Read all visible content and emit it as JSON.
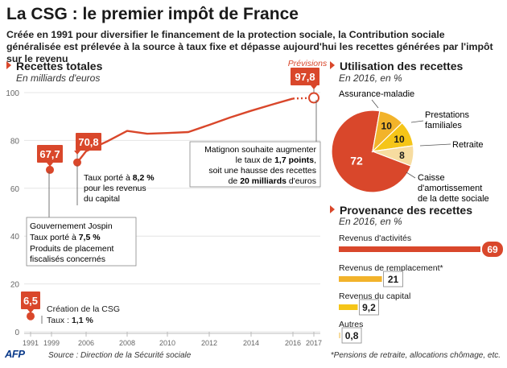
{
  "header": {
    "title": "La CSG : le premier impôt de France",
    "subtitle": "Créée en 1991 pour diversifier le financement de la protection sociale, la Contribution sociale généralisée est prélevée à la source à taux fixe et dépasse aujourd'hui les recettes générées par l'impôt sur le revenu"
  },
  "colors": {
    "accent": "#d9472b",
    "dark_orange": "#e06b1f",
    "gold": "#f2b32b",
    "yellow": "#f5c518",
    "pale": "#f7dca0",
    "grid": "#e4e4e4"
  },
  "line_chart": {
    "heading": "Recettes totales",
    "unit": "En milliards d'euros",
    "forecast_label": "Prévisions",
    "annotations": {
      "a1991": {
        "value": "6,5",
        "line1": "Création de la CSG",
        "line2a": "Taux : ",
        "line2b": "1,1 %"
      },
      "a1997": {
        "value": "67,7",
        "line1": "Gouvernement Jospin",
        "line2a": "Taux porté à ",
        "line2b": "7,5 %",
        "line3": "Produits de placement",
        "line4": "fiscalisés concernés"
      },
      "a2005": {
        "value": "70,8",
        "line1a": "Taux porté à ",
        "line1b": "8,2 %",
        "line2": "pour les revenus",
        "line3": "du capital"
      },
      "a2017": {
        "value": "97,8",
        "line1": "Matignon souhaite augmenter",
        "line2a": "le taux de ",
        "line2b": "1,7 points",
        "line2c": ",",
        "line3": "soit une hausse des recettes",
        "line4a": "de ",
        "line4b": "20 milliards",
        "line4c": " d'euros"
      }
    }
  },
  "pie_chart": {
    "heading": "Utilisation des recettes",
    "unit": "En 2016, en %",
    "labels": {
      "assurance": "Assurance-maladie",
      "prestations1": "Prestations",
      "prestations2": "familiales",
      "retraite": "Retraite",
      "caisse1": "Caisse",
      "caisse2": "d'amortissement",
      "caisse3": "de la dette sociale"
    }
  },
  "bar_chart": {
    "heading": "Provenance des recettes",
    "unit": "En 2016, en %",
    "note": "*Pensions de retraite, allocations chômage, etc."
  },
  "footer": {
    "logo": "AFP",
    "source": "Source : Direction de la Sécurité sociale"
  },
  "chart_data": [
    {
      "type": "line",
      "title": "Recettes totales",
      "ylabel": "En milliards d'euros",
      "ylim": [
        0,
        100
      ],
      "yticks": [
        0,
        20,
        40,
        60,
        80,
        100
      ],
      "xtick_labels": [
        "1991",
        "1999",
        "2006",
        "2008",
        "2010",
        "2012",
        "2014",
        "2016",
        "2017"
      ],
      "series": [
        {
          "name": "Recettes totales",
          "x": [
            2005,
            2006,
            2007,
            2008,
            2009,
            2010,
            2011,
            2012,
            2013,
            2014,
            2015,
            2016
          ],
          "y": [
            70.8,
            75.5,
            79.5,
            84.0,
            82.8,
            83.1,
            83.5,
            86.5,
            89.6,
            92.4,
            95.0,
            97.5
          ]
        },
        {
          "name": "Prévisions",
          "x": [
            2016,
            2017
          ],
          "y": [
            97.5,
            97.8
          ]
        }
      ],
      "points": [
        {
          "x": 1991,
          "y": 6.5,
          "label": "6,5"
        },
        {
          "x": 1997,
          "y": 67.7,
          "label": "67,7"
        },
        {
          "x": 2005,
          "y": 70.8,
          "label": "70,8"
        },
        {
          "x": 2017,
          "y": 97.8,
          "label": "97,8"
        }
      ]
    },
    {
      "type": "pie",
      "title": "Utilisation des recettes",
      "unit": "En 2016, en %",
      "labels": [
        "Assurance-maladie",
        "Prestations familiales",
        "Retraite",
        "Caisse d'amortissement de la dette sociale"
      ],
      "values": [
        72,
        10,
        10,
        8
      ]
    },
    {
      "type": "bar",
      "title": "Provenance des recettes",
      "unit": "En 2016, en %",
      "categories": [
        "Revenus d'activités",
        "Revenus de remplacement*",
        "Revenus du capital",
        "Autres"
      ],
      "values": [
        69,
        21,
        9.2,
        0.8
      ],
      "value_labels": [
        "69",
        "21",
        "9,2",
        "0,8"
      ]
    }
  ]
}
